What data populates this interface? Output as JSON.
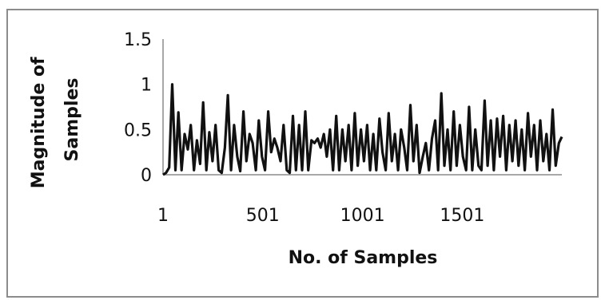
{
  "chart_data": {
    "type": "line",
    "title": "",
    "xlabel": "No. of Samples",
    "ylabel_lines": [
      "Magnitude of",
      "Samples"
    ],
    "xlim": [
      1,
      2000
    ],
    "ylim": [
      0,
      1.5
    ],
    "x_ticks": [
      1,
      501,
      1001,
      1501
    ],
    "y_ticks": [
      0,
      0.5,
      1,
      1.5
    ],
    "x_tick_labels": [
      "1",
      "501",
      "1001",
      "1501"
    ],
    "y_tick_labels": [
      "0",
      "0.5",
      "1",
      "1.5"
    ],
    "grid": false,
    "legend": "none",
    "line_color": "#111111",
    "series": [
      {
        "x": [
          1,
          16,
          32,
          47,
          63,
          78,
          94,
          109,
          125,
          140,
          156,
          171,
          187,
          202,
          218,
          233,
          249,
          264,
          280,
          295,
          311,
          326,
          342,
          357,
          373,
          388,
          404,
          419,
          435,
          450,
          466,
          481,
          497,
          512,
          528,
          543,
          559,
          574,
          590,
          605,
          621,
          636,
          652,
          667,
          683,
          698,
          714,
          729,
          745,
          760,
          776,
          791,
          807,
          822,
          838,
          853,
          869,
          884,
          900,
          915,
          931,
          946,
          962,
          977,
          993,
          1008,
          1024,
          1039,
          1055,
          1070,
          1086,
          1101,
          1117,
          1132,
          1148,
          1163,
          1179,
          1194,
          1210,
          1225,
          1241,
          1256,
          1272,
          1287,
          1303,
          1318,
          1334,
          1349,
          1365,
          1380,
          1396,
          1411,
          1427,
          1442,
          1458,
          1473,
          1489,
          1504,
          1520,
          1535,
          1551,
          1566,
          1582,
          1597,
          1613,
          1628,
          1644,
          1659,
          1675,
          1690,
          1706,
          1721,
          1737,
          1752,
          1768,
          1783,
          1799,
          1814,
          1830,
          1845,
          1861,
          1876,
          1892,
          1907,
          1923,
          1938,
          1954,
          1969,
          1985,
          2000
        ],
        "y": [
          0.0,
          0.02,
          0.08,
          1.0,
          0.05,
          0.69,
          0.05,
          0.45,
          0.28,
          0.55,
          0.05,
          0.38,
          0.12,
          0.8,
          0.05,
          0.47,
          0.15,
          0.55,
          0.05,
          0.02,
          0.3,
          0.88,
          0.05,
          0.55,
          0.2,
          0.04,
          0.7,
          0.15,
          0.45,
          0.35,
          0.05,
          0.6,
          0.2,
          0.05,
          0.7,
          0.25,
          0.4,
          0.3,
          0.15,
          0.55,
          0.05,
          0.02,
          0.65,
          0.05,
          0.55,
          0.05,
          0.7,
          0.05,
          0.38,
          0.35,
          0.4,
          0.3,
          0.45,
          0.2,
          0.5,
          0.05,
          0.65,
          0.05,
          0.5,
          0.15,
          0.55,
          0.05,
          0.68,
          0.1,
          0.5,
          0.15,
          0.55,
          0.05,
          0.45,
          0.05,
          0.62,
          0.25,
          0.05,
          0.68,
          0.15,
          0.45,
          0.05,
          0.5,
          0.3,
          0.05,
          0.77,
          0.15,
          0.55,
          0.02,
          0.2,
          0.35,
          0.05,
          0.4,
          0.6,
          0.05,
          0.9,
          0.1,
          0.5,
          0.05,
          0.7,
          0.1,
          0.55,
          0.2,
          0.05,
          0.75,
          0.05,
          0.5,
          0.1,
          0.05,
          0.82,
          0.1,
          0.6,
          0.05,
          0.62,
          0.2,
          0.65,
          0.05,
          0.55,
          0.15,
          0.6,
          0.1,
          0.5,
          0.05,
          0.68,
          0.2,
          0.55,
          0.05,
          0.6,
          0.15,
          0.45,
          0.05,
          0.72,
          0.1,
          0.35,
          0.42
        ]
      }
    ]
  }
}
